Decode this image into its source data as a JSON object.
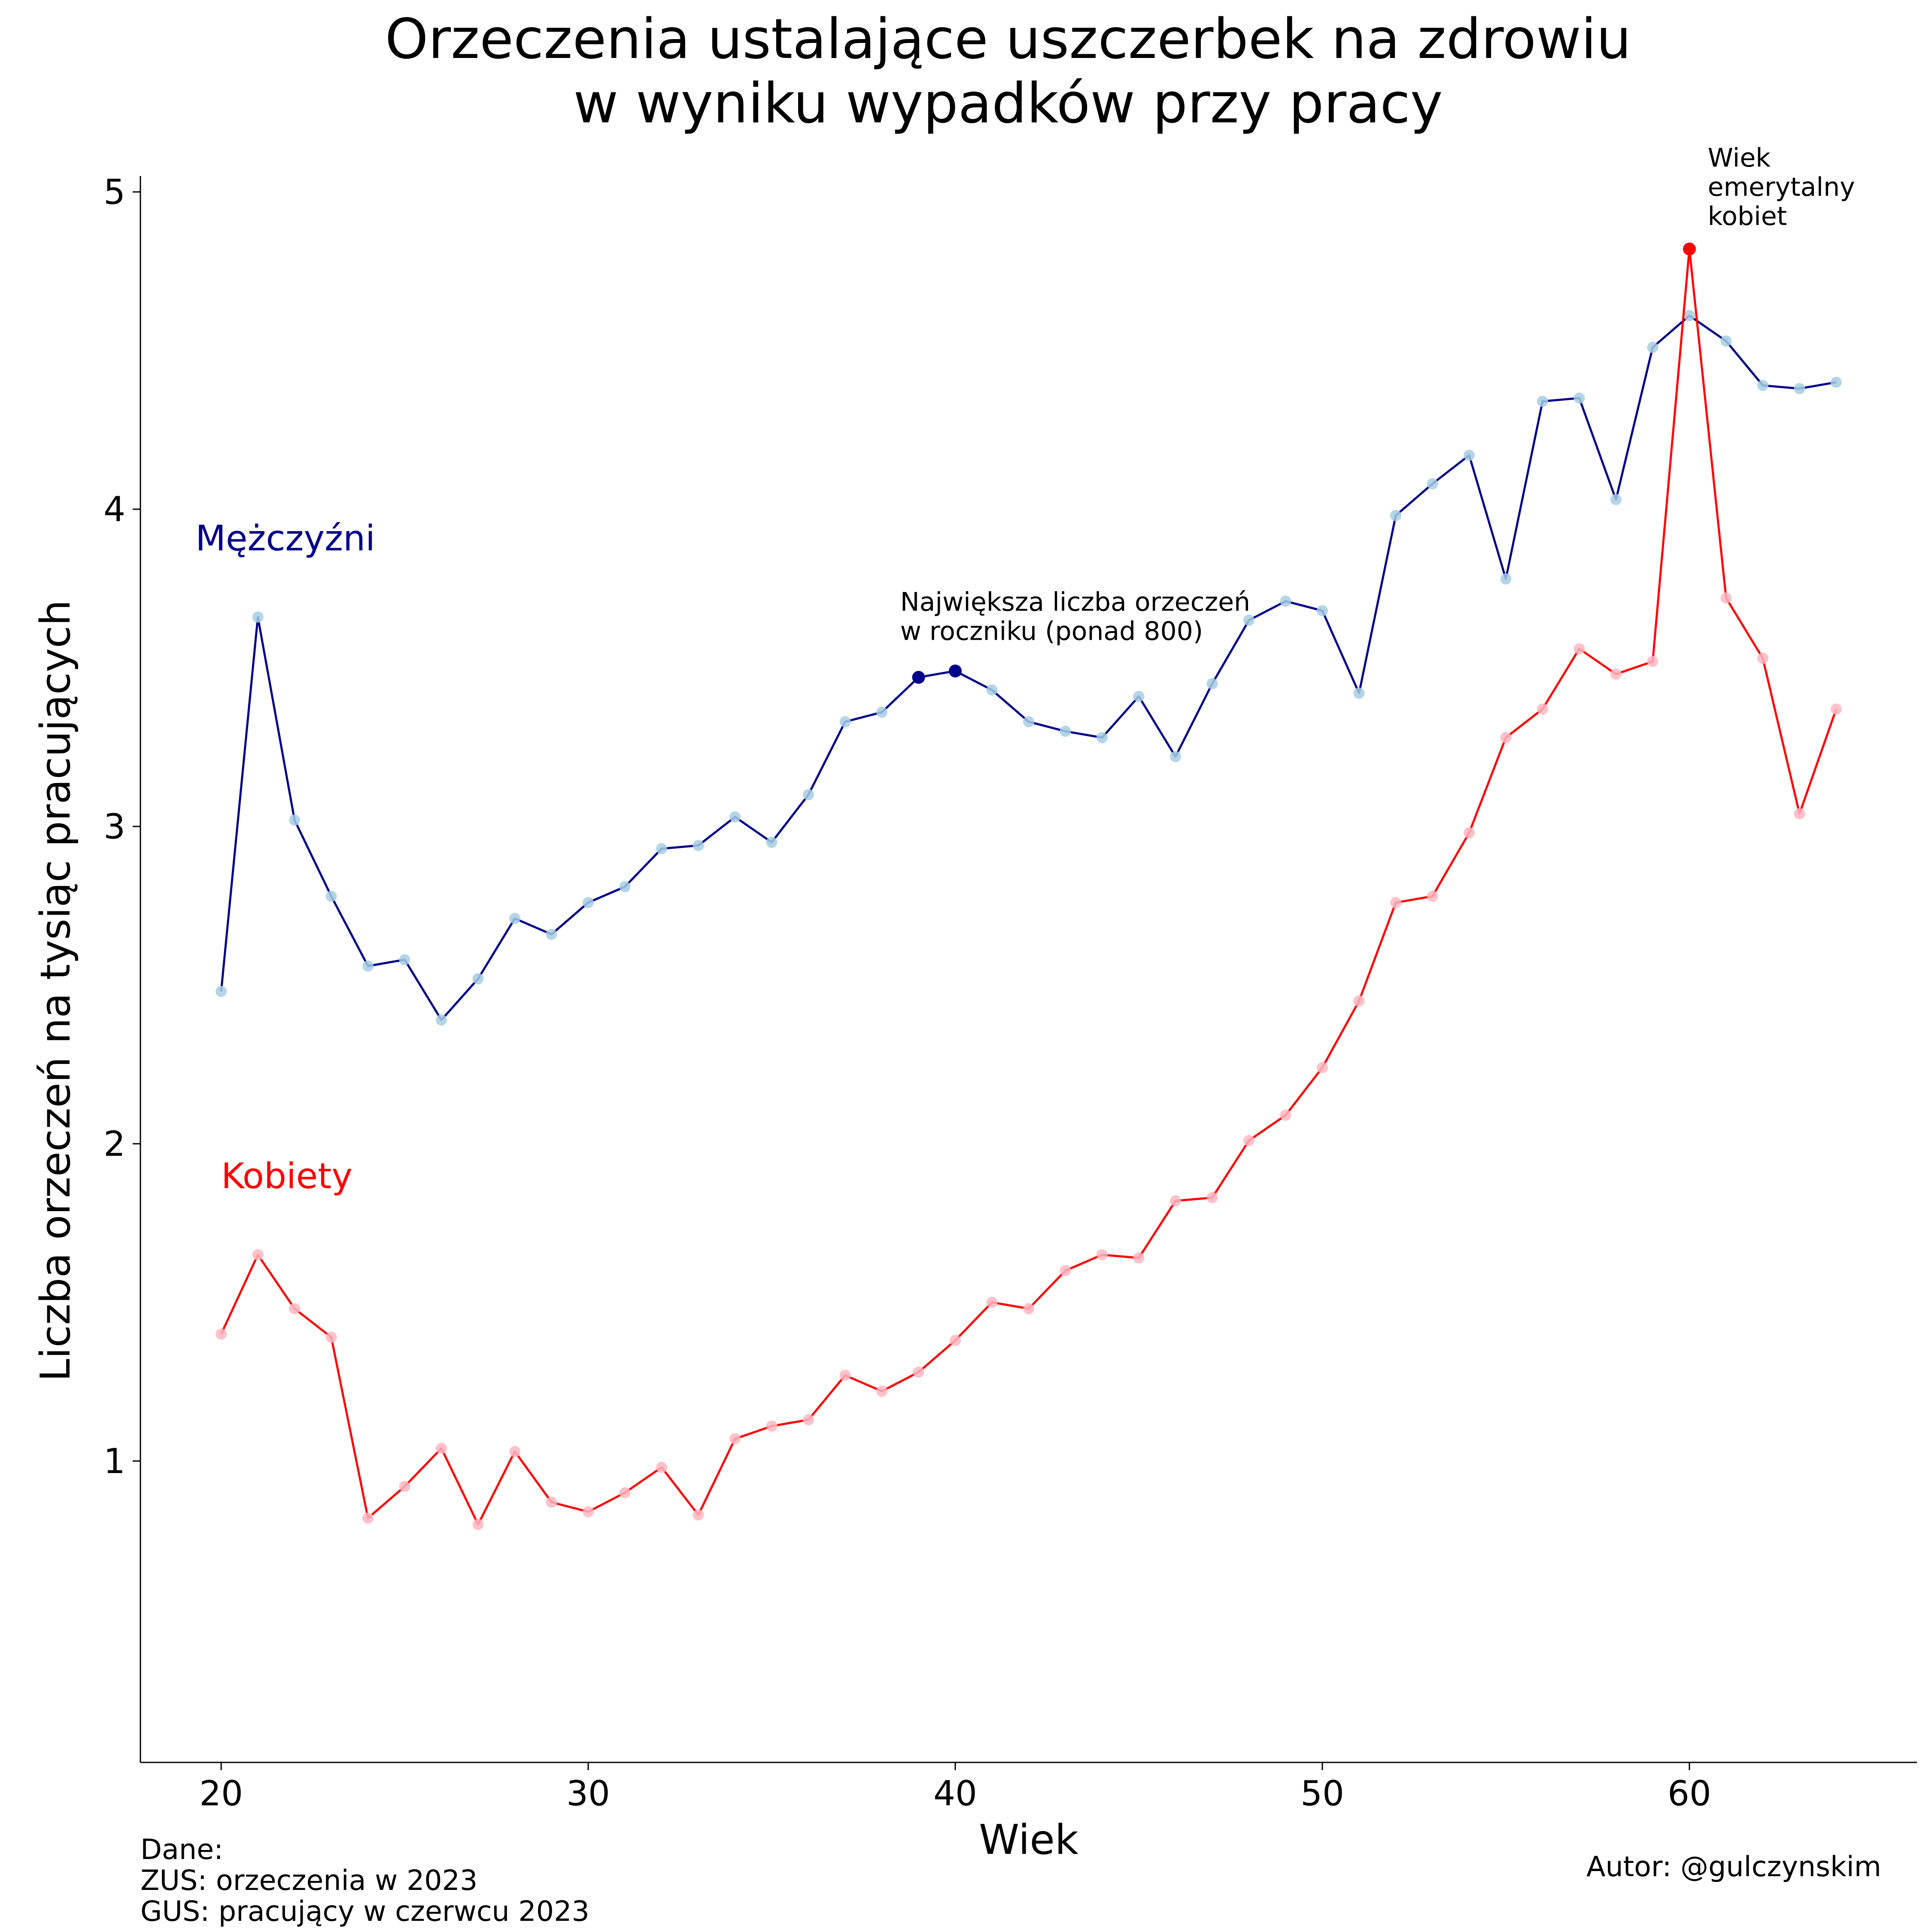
{
  "chart_data": {
    "type": "line",
    "title": [
      "Orzeczenia ustalające uszczerbek na zdrowiu",
      "w wyniku wypadków przy pracy"
    ],
    "xlabel": "Wiek",
    "ylabel": "Liczba orzeczeń na tysiąc pracujących",
    "xlim": [
      17.8,
      66.2
    ],
    "ylim": [
      0.05,
      5.05
    ],
    "xticks": [
      20,
      30,
      40,
      50,
      60
    ],
    "yticks": [
      1,
      2,
      3,
      4,
      5
    ],
    "x": [
      20,
      21,
      22,
      23,
      24,
      25,
      26,
      27,
      28,
      29,
      30,
      31,
      32,
      33,
      34,
      35,
      36,
      37,
      38,
      39,
      40,
      41,
      42,
      43,
      44,
      45,
      46,
      47,
      48,
      49,
      50,
      51,
      52,
      53,
      54,
      55,
      56,
      57,
      58,
      59,
      60,
      61,
      62,
      63,
      64
    ],
    "series": [
      {
        "name": "Mężczyźni",
        "color": "#00008b",
        "marker_color": "#a6cee3",
        "values": [
          2.48,
          3.66,
          3.02,
          2.78,
          2.56,
          2.58,
          2.39,
          2.52,
          2.71,
          2.66,
          2.76,
          2.81,
          2.93,
          2.94,
          3.03,
          2.95,
          3.1,
          3.33,
          3.36,
          3.47,
          3.49,
          3.43,
          3.33,
          3.3,
          3.28,
          3.41,
          3.22,
          3.45,
          3.65,
          3.71,
          3.68,
          3.42,
          3.98,
          4.08,
          4.17,
          3.78,
          4.34,
          4.35,
          4.03,
          4.51,
          4.61,
          4.53,
          4.39,
          4.38,
          4.4
        ]
      },
      {
        "name": "Kobiety",
        "color": "#ff0000",
        "marker_color": "#ffb6c1",
        "values": [
          1.4,
          1.65,
          1.48,
          1.39,
          0.82,
          0.92,
          1.04,
          0.8,
          1.03,
          0.87,
          0.84,
          0.9,
          0.98,
          0.83,
          1.07,
          1.11,
          1.13,
          1.27,
          1.22,
          1.28,
          1.38,
          1.5,
          1.48,
          1.6,
          1.65,
          1.64,
          1.82,
          1.83,
          2.01,
          2.09,
          2.24,
          2.45,
          2.76,
          2.78,
          2.98,
          3.28,
          3.37,
          3.56,
          3.48,
          3.52,
          4.82,
          3.72,
          3.53,
          3.04,
          3.37
        ]
      }
    ],
    "series_labels": [
      {
        "series": 0,
        "text": "Mężczyźni",
        "x": 19.3,
        "y": 3.87
      },
      {
        "series": 1,
        "text": "Kobiety",
        "x": 20.0,
        "y": 1.86
      }
    ],
    "highlights": [
      {
        "series": 0,
        "x": 39,
        "y": 3.47,
        "color": "#00008b"
      },
      {
        "series": 0,
        "x": 40,
        "y": 3.49,
        "color": "#00008b"
      },
      {
        "series": 1,
        "x": 60,
        "y": 4.82,
        "color": "#ff0000"
      }
    ],
    "annotations": [
      {
        "lines": [
          "Największa liczba orzeczeń",
          "w roczniku (ponad 800)"
        ],
        "x": 38.5,
        "y": 3.68
      },
      {
        "lines": [
          "Wiek",
          "emerytalny",
          "kobiet"
        ],
        "x": 60.5,
        "y": 5.08
      }
    ],
    "grid": false,
    "legend": "none"
  },
  "footer": {
    "source_lines": [
      "Dane:",
      "ZUS: orzeczenia w 2023",
      "GUS: pracujący w czerwcu 2023"
    ],
    "author": "Autor: @gulczynskim"
  }
}
